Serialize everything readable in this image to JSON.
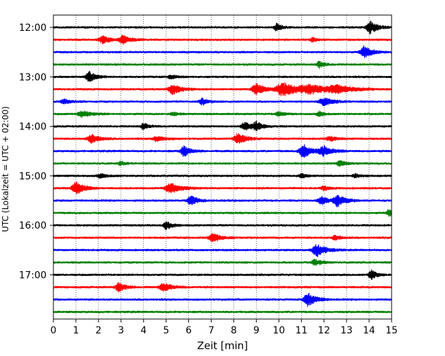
{
  "chart_data": {
    "type": "line",
    "chart_kind": "helicorder seismogram",
    "xlabel": "Zeit  [min]",
    "ylabel": "UTC (Lokalzeit = UTC + 02:00)",
    "xlim": [
      0,
      15
    ],
    "x_ticks": [
      0,
      1,
      2,
      3,
      4,
      5,
      6,
      7,
      8,
      9,
      10,
      11,
      12,
      13,
      14,
      15
    ],
    "x_tick_labels": [
      "0",
      "1",
      "2",
      "3",
      "4",
      "5",
      "6",
      "7",
      "8",
      "9",
      "10",
      "11",
      "12",
      "13",
      "14",
      "15"
    ],
    "y_tick_labels": [
      "12:00",
      "13:00",
      "14:00",
      "15:00",
      "16:00",
      "17:00"
    ],
    "traces_per_hour": 4,
    "grid": "vertical dotted at each minute",
    "trace_colors": [
      "#000000",
      "#ff0000",
      "#0000ff",
      "#008000"
    ],
    "trace_starts": [
      "12:00",
      "12:15",
      "12:30",
      "12:45",
      "13:00",
      "13:15",
      "13:30",
      "13:45",
      "14:00",
      "14:15",
      "14:30",
      "14:45",
      "15:00",
      "15:15",
      "15:30",
      "15:45",
      "16:00",
      "16:15",
      "16:30",
      "16:45",
      "17:00",
      "17:15",
      "17:30",
      "17:45"
    ],
    "bursts": [
      [
        {
          "t": 9.9,
          "a": 0.5,
          "w": 0.2
        },
        {
          "t": 14.05,
          "a": 1.0,
          "w": 0.25
        }
      ],
      [
        {
          "t": 2.2,
          "a": 0.5,
          "w": 0.3
        },
        {
          "t": 3.1,
          "a": 0.55,
          "w": 0.3
        },
        {
          "t": 11.5,
          "a": 0.3,
          "w": 0.2
        }
      ],
      [
        {
          "t": 13.8,
          "a": 0.85,
          "w": 0.3
        }
      ],
      [
        {
          "t": 11.8,
          "a": 0.45,
          "w": 0.2
        }
      ],
      [
        {
          "t": 1.6,
          "a": 0.75,
          "w": 0.25
        },
        {
          "t": 5.2,
          "a": 0.3,
          "w": 0.2
        }
      ],
      [
        {
          "t": 5.3,
          "a": 0.75,
          "w": 0.3
        },
        {
          "t": 9.0,
          "a": 0.8,
          "w": 0.3
        },
        {
          "t": 10.2,
          "a": 1.0,
          "w": 0.5
        },
        {
          "t": 11.4,
          "a": 0.55,
          "w": 0.8
        },
        {
          "t": 12.6,
          "a": 0.45,
          "w": 0.6
        }
      ],
      [
        {
          "t": 0.5,
          "a": 0.3,
          "w": 0.3
        },
        {
          "t": 6.6,
          "a": 0.45,
          "w": 0.2
        },
        {
          "t": 12.0,
          "a": 0.55,
          "w": 0.35
        }
      ],
      [
        {
          "t": 1.3,
          "a": 0.45,
          "w": 0.35
        },
        {
          "t": 5.3,
          "a": 0.25,
          "w": 0.2
        },
        {
          "t": 10.0,
          "a": 0.3,
          "w": 0.2
        },
        {
          "t": 11.8,
          "a": 0.3,
          "w": 0.2
        }
      ],
      [
        {
          "t": 4.0,
          "a": 0.45,
          "w": 0.2
        },
        {
          "t": 8.5,
          "a": 0.55,
          "w": 0.3
        },
        {
          "t": 9.0,
          "a": 0.6,
          "w": 0.2
        }
      ],
      [
        {
          "t": 1.7,
          "a": 0.6,
          "w": 0.3
        },
        {
          "t": 4.6,
          "a": 0.35,
          "w": 0.3
        },
        {
          "t": 8.2,
          "a": 0.75,
          "w": 0.3
        },
        {
          "t": 12.3,
          "a": 0.3,
          "w": 0.3
        }
      ],
      [
        {
          "t": 5.8,
          "a": 0.75,
          "w": 0.25
        },
        {
          "t": 11.1,
          "a": 1.0,
          "w": 0.3
        },
        {
          "t": 12.0,
          "a": 0.6,
          "w": 0.35
        }
      ],
      [
        {
          "t": 3.0,
          "a": 0.25,
          "w": 0.2
        },
        {
          "t": 12.7,
          "a": 0.45,
          "w": 0.2
        }
      ],
      [
        {
          "t": 2.1,
          "a": 0.25,
          "w": 0.3
        },
        {
          "t": 11.0,
          "a": 0.3,
          "w": 0.2
        },
        {
          "t": 13.4,
          "a": 0.3,
          "w": 0.2
        }
      ],
      [
        {
          "t": 1.0,
          "a": 0.9,
          "w": 0.3
        },
        {
          "t": 5.2,
          "a": 0.7,
          "w": 0.4
        },
        {
          "t": 12.0,
          "a": 0.3,
          "w": 0.2
        }
      ],
      [
        {
          "t": 6.1,
          "a": 0.7,
          "w": 0.25
        },
        {
          "t": 11.9,
          "a": 0.55,
          "w": 0.3
        },
        {
          "t": 12.6,
          "a": 0.8,
          "w": 0.3
        }
      ],
      [
        {
          "t": 14.9,
          "a": 0.5,
          "w": 0.2
        }
      ],
      [
        {
          "t": 5.0,
          "a": 0.65,
          "w": 0.2
        }
      ],
      [
        {
          "t": 7.1,
          "a": 0.6,
          "w": 0.3
        },
        {
          "t": 12.5,
          "a": 0.35,
          "w": 0.2
        }
      ],
      [
        {
          "t": 11.7,
          "a": 0.85,
          "w": 0.35
        }
      ],
      [
        {
          "t": 11.6,
          "a": 0.45,
          "w": 0.25
        }
      ],
      [
        {
          "t": 14.1,
          "a": 0.7,
          "w": 0.2
        }
      ],
      [
        {
          "t": 2.9,
          "a": 0.65,
          "w": 0.25
        },
        {
          "t": 4.9,
          "a": 0.6,
          "w": 0.3
        }
      ],
      [
        {
          "t": 11.3,
          "a": 0.95,
          "w": 0.3
        }
      ],
      []
    ]
  }
}
